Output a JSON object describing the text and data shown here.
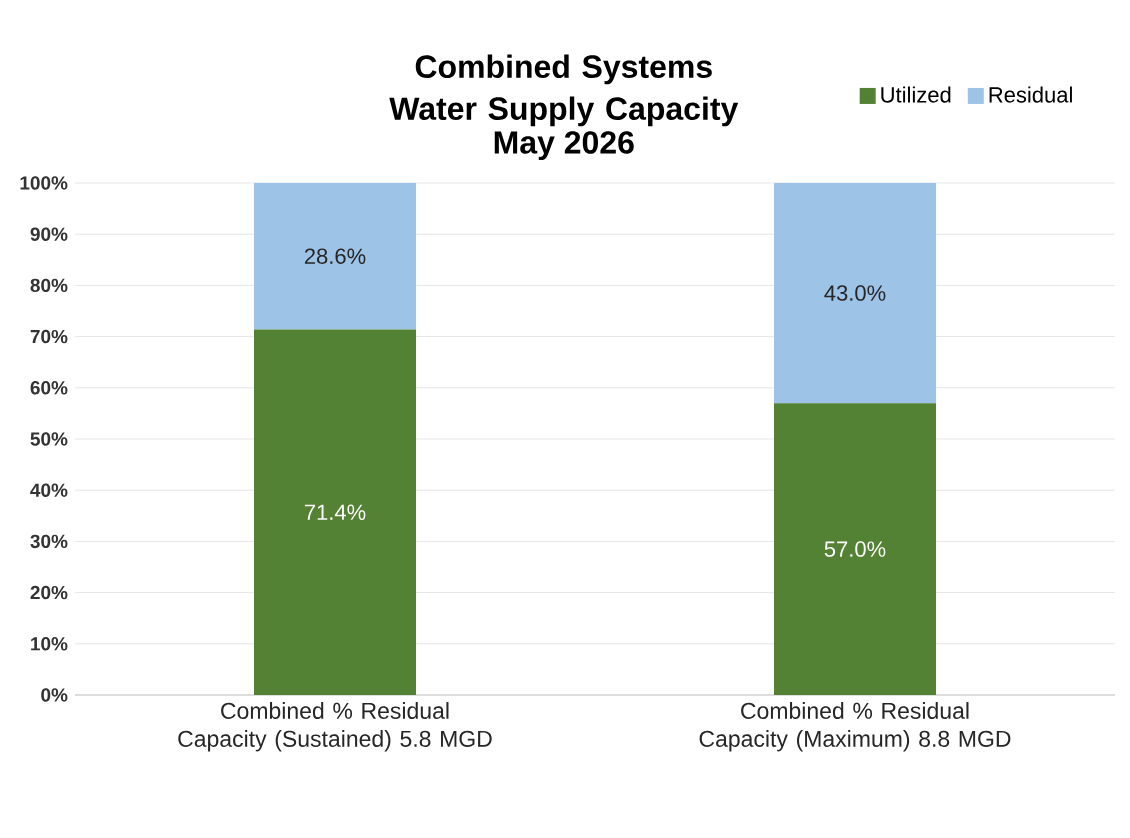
{
  "chart_data": {
    "type": "bar",
    "stacked": true,
    "title": "Combined Systems Water Supply Capacity",
    "subtitle": "May 2026",
    "categories": [
      "Combined % Residual Capacity (Sustained) 5.8 MGD",
      "Combined % Residual Capacity (Maximum) 8.8 MGD"
    ],
    "series": [
      {
        "name": "Utilized",
        "color": "#548235",
        "values": [
          71.4,
          57.0
        ],
        "value_labels": [
          "71.4%",
          "57.0%"
        ]
      },
      {
        "name": "Residual",
        "color": "#9dc3e6",
        "values": [
          28.6,
          43.0
        ],
        "value_labels": [
          "28.6%",
          "43.0%"
        ]
      }
    ],
    "ylim": [
      0,
      100
    ],
    "yticks": [
      {
        "value": 0,
        "label": "0%"
      },
      {
        "value": 10,
        "label": "10%"
      },
      {
        "value": 20,
        "label": "20%"
      },
      {
        "value": 30,
        "label": "30%"
      },
      {
        "value": 40,
        "label": "40%"
      },
      {
        "value": 50,
        "label": "50%"
      },
      {
        "value": 60,
        "label": "60%"
      },
      {
        "value": 70,
        "label": "70%"
      },
      {
        "value": 80,
        "label": "80%"
      },
      {
        "value": 90,
        "label": "90%"
      },
      {
        "value": 100,
        "label": "100%"
      }
    ],
    "grid": "y",
    "legend": "top right"
  }
}
